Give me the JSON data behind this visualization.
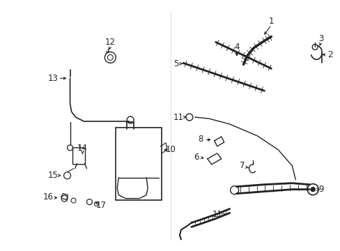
{
  "bg_color": "#ffffff",
  "line_color": "#222222",
  "figsize": [
    4.89,
    3.6
  ],
  "dpi": 100,
  "label_fontsize": 8.5
}
